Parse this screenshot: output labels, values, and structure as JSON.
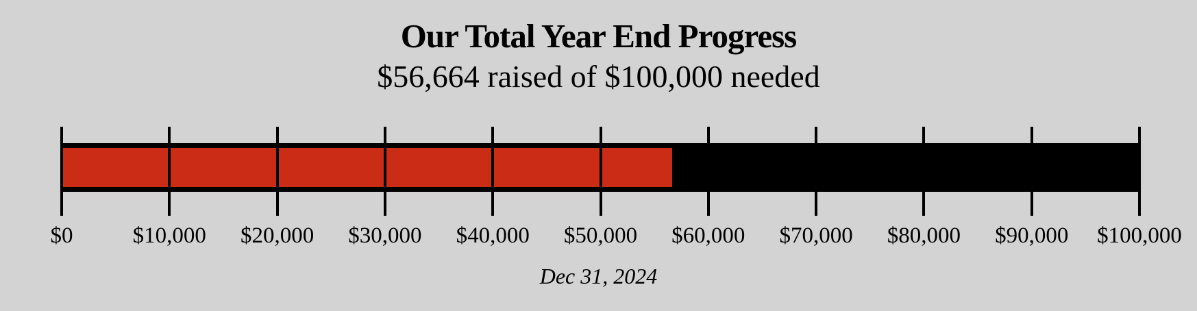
{
  "page": {
    "background_color": "#d3d3d3",
    "text_color": "#000000"
  },
  "chart_data": {
    "type": "bar",
    "subtype": "horizontal-progress",
    "title": "Our Total Year End Progress",
    "subtitle": "$56,664 raised of $100,000 needed",
    "raised_value": 56664,
    "goal_value": 100000,
    "percent_complete": 56.664,
    "raised_label": "$56,664",
    "goal_label": "$100,000",
    "xlim": [
      0,
      100000
    ],
    "tick_interval": 10000,
    "tick_labels": [
      "$0",
      "$10,000",
      "$20,000",
      "$30,000",
      "$40,000",
      "$50,000",
      "$60,000",
      "$70,000",
      "$80,000",
      "$90,000",
      "$100,000"
    ],
    "date_annotation": "Dec 31, 2024",
    "legend": "none",
    "grid": false,
    "colors": {
      "fill": "#cb2c16",
      "track": "#000000",
      "tick": "#000000",
      "background": "#d3d3d3"
    }
  }
}
